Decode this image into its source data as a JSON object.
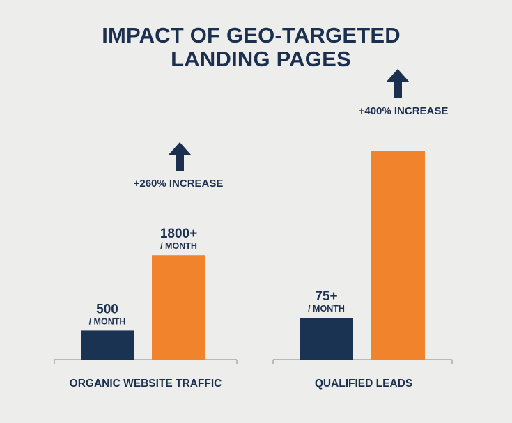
{
  "chart_data": {
    "type": "bar",
    "title_line1": "IMPACT OF GEO-TARGETED",
    "title_line2": "LANDING PAGES",
    "ylabel": "",
    "xlabel": "",
    "colors": {
      "before": "#1b3352",
      "after": "#f0832b",
      "text": "#1b2f4e",
      "axis": "#9a9a9a"
    },
    "groups": [
      {
        "category": "ORGANIC WEBSITE TRAFFIC",
        "before": {
          "value": 500,
          "label": "500",
          "unit": "/ MONTH"
        },
        "after": {
          "value": 1800,
          "label": "1800+",
          "unit": "/ MONTH"
        },
        "increase": "+260% INCREASE",
        "arrow_icon": "arrow-up-icon"
      },
      {
        "category": "QUALIFIED LEADS",
        "before": {
          "value": 75,
          "label": "75+",
          "unit": "/ MONTH"
        },
        "after": {
          "value": 375,
          "label": "",
          "unit": ""
        },
        "increase": "+400% INCREASE",
        "arrow_icon": "arrow-up-icon"
      }
    ]
  }
}
